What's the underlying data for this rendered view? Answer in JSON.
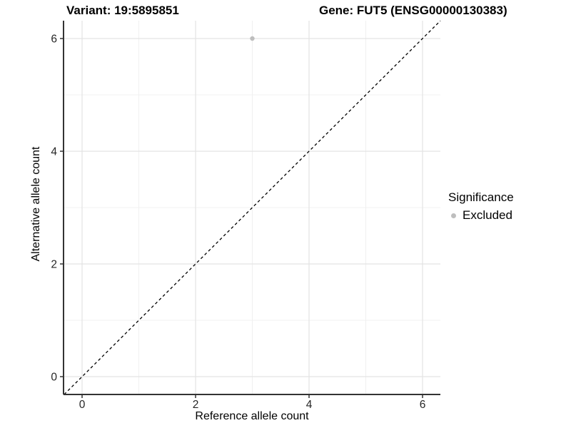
{
  "title": {
    "variant": "Variant: 19:5895851",
    "gene": "Gene: FUT5 (ENSG00000130383)"
  },
  "legend": {
    "title": "Significance",
    "items": [
      {
        "label": "Excluded",
        "color": "#bebebe"
      }
    ]
  },
  "chart_data": {
    "type": "scatter",
    "title": "Variant: 19:5895851    Gene: FUT5 (ENSG00000130383)",
    "xlabel": "Reference allele count",
    "ylabel": "Alternative allele count",
    "xlim": [
      -0.33,
      6.32
    ],
    "ylim": [
      -0.32,
      6.33
    ],
    "x_ticks": [
      0,
      2,
      4,
      6
    ],
    "y_ticks": [
      0,
      2,
      4,
      6
    ],
    "x_minor_gridlines": [
      1,
      3,
      5
    ],
    "y_minor_gridlines": [
      1,
      3,
      5
    ],
    "grid": true,
    "legend_position": "right",
    "points": [
      {
        "x": 3,
        "y": 6,
        "series": "Excluded",
        "color": "#bebebe"
      }
    ],
    "reference_line": {
      "type": "identity",
      "slope": 1,
      "intercept": 0,
      "style": "dashed",
      "color": "#000000"
    }
  },
  "colors": {
    "background": "#ffffff",
    "major_grid": "#e3e3e3",
    "minor_grid": "#f0f0f0",
    "axis_line": "#333333",
    "tick_text": "#262626",
    "point": "#bebebe",
    "dashed_line": "#000000"
  }
}
